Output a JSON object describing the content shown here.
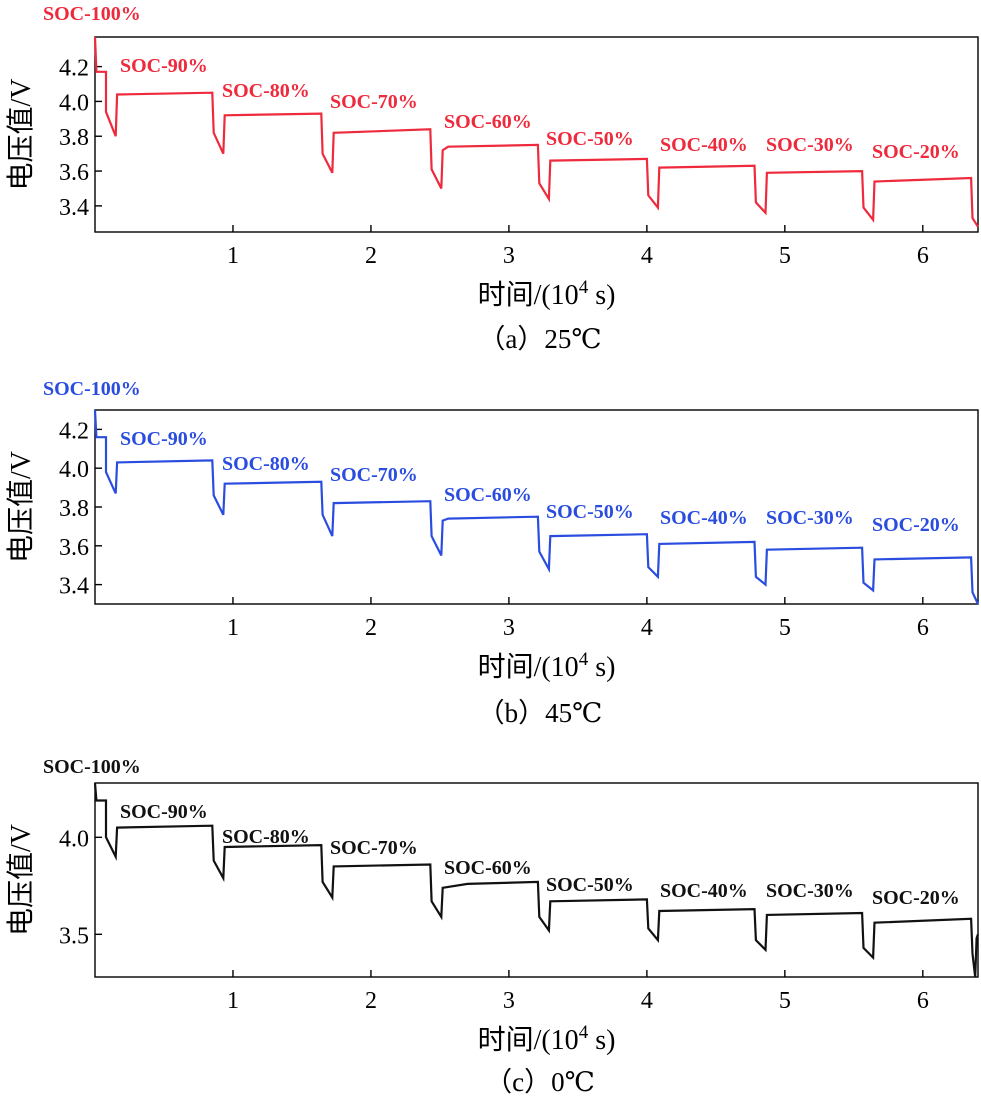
{
  "figure_caption_prefix": "",
  "chart_data": [
    {
      "type": "line",
      "panel": "a",
      "caption": "（a）25℃",
      "xlabel_main": "时间/(10",
      "xlabel_sup": "4",
      "xlabel_tail": " s)",
      "ylabel": "电压值/V",
      "xlim": [
        0,
        6.4
      ],
      "ylim": [
        3.25,
        4.37
      ],
      "xticks": [
        1,
        2,
        3,
        4,
        5,
        6
      ],
      "yticks": [
        3.4,
        3.6,
        3.8,
        4.0,
        4.2
      ],
      "ytick_labels": [
        "3.4",
        "3.6",
        "3.8",
        "4.0",
        "4.2"
      ],
      "color": "#ee2a3c",
      "series": [
        {
          "name": "25℃",
          "points": [
            [
              0,
              4.37
            ],
            [
              0.01,
              4.17
            ],
            [
              0.08,
              4.17
            ],
            [
              0.08,
              3.94
            ],
            [
              0.15,
              3.8
            ],
            [
              0.16,
              4.04
            ],
            [
              0.85,
              4.05
            ],
            [
              0.86,
              3.82
            ],
            [
              0.93,
              3.7
            ],
            [
              0.94,
              3.92
            ],
            [
              1.64,
              3.93
            ],
            [
              1.65,
              3.7
            ],
            [
              1.72,
              3.59
            ],
            [
              1.73,
              3.82
            ],
            [
              2.43,
              3.84
            ],
            [
              2.44,
              3.61
            ],
            [
              2.51,
              3.5
            ],
            [
              2.52,
              3.72
            ],
            [
              2.56,
              3.74
            ],
            [
              3.21,
              3.75
            ],
            [
              3.22,
              3.53
            ],
            [
              3.29,
              3.44
            ],
            [
              3.3,
              3.66
            ],
            [
              4.0,
              3.67
            ],
            [
              4.01,
              3.46
            ],
            [
              4.08,
              3.39
            ],
            [
              4.09,
              3.62
            ],
            [
              4.78,
              3.63
            ],
            [
              4.79,
              3.42
            ],
            [
              4.86,
              3.36
            ],
            [
              4.87,
              3.59
            ],
            [
              5.56,
              3.6
            ],
            [
              5.57,
              3.39
            ],
            [
              5.64,
              3.32
            ],
            [
              5.65,
              3.54
            ],
            [
              6.35,
              3.56
            ],
            [
              6.36,
              3.33
            ],
            [
              6.4,
              3.28
            ]
          ]
        }
      ],
      "annotations": [
        "SOC-100%",
        "SOC-90%",
        "SOC-80%",
        "SOC-70%",
        "SOC-60%",
        "SOC-50%",
        "SOC-40%",
        "SOC-30%",
        "SOC-20%"
      ]
    },
    {
      "type": "line",
      "panel": "b",
      "caption": "（b）45℃",
      "xlabel_main": "时间/(10",
      "xlabel_sup": "4",
      "xlabel_tail": " s)",
      "ylabel": "电压值/V",
      "xlim": [
        0,
        6.4
      ],
      "ylim": [
        3.3,
        4.3
      ],
      "xticks": [
        1,
        2,
        3,
        4,
        5,
        6
      ],
      "yticks": [
        3.4,
        3.6,
        3.8,
        4.0,
        4.2
      ],
      "ytick_labels": [
        "3.4",
        "3.6",
        "3.8",
        "4.0",
        "4.2"
      ],
      "color": "#2a4de0",
      "series": [
        {
          "name": "45℃",
          "points": [
            [
              0,
              4.3
            ],
            [
              0.01,
              4.16
            ],
            [
              0.08,
              4.16
            ],
            [
              0.08,
              3.98
            ],
            [
              0.15,
              3.87
            ],
            [
              0.16,
              4.03
            ],
            [
              0.85,
              4.04
            ],
            [
              0.86,
              3.86
            ],
            [
              0.93,
              3.76
            ],
            [
              0.94,
              3.92
            ],
            [
              1.64,
              3.93
            ],
            [
              1.65,
              3.76
            ],
            [
              1.72,
              3.65
            ],
            [
              1.73,
              3.82
            ],
            [
              2.43,
              3.83
            ],
            [
              2.44,
              3.65
            ],
            [
              2.51,
              3.55
            ],
            [
              2.52,
              3.73
            ],
            [
              2.56,
              3.74
            ],
            [
              3.21,
              3.75
            ],
            [
              3.22,
              3.57
            ],
            [
              3.29,
              3.48
            ],
            [
              3.3,
              3.65
            ],
            [
              4.0,
              3.66
            ],
            [
              4.01,
              3.49
            ],
            [
              4.08,
              3.44
            ],
            [
              4.09,
              3.61
            ],
            [
              4.78,
              3.62
            ],
            [
              4.79,
              3.44
            ],
            [
              4.86,
              3.4
            ],
            [
              4.87,
              3.58
            ],
            [
              5.56,
              3.59
            ],
            [
              5.57,
              3.41
            ],
            [
              5.64,
              3.37
            ],
            [
              5.65,
              3.53
            ],
            [
              6.35,
              3.54
            ],
            [
              6.36,
              3.36
            ],
            [
              6.4,
              3.3
            ]
          ]
        }
      ],
      "annotations": [
        "SOC-100%",
        "SOC-90%",
        "SOC-80%",
        "SOC-70%",
        "SOC-60%",
        "SOC-50%",
        "SOC-40%",
        "SOC-30%",
        "SOC-20%"
      ]
    },
    {
      "type": "line",
      "panel": "c",
      "caption": "（c）0℃",
      "xlabel_main": "时间/(10",
      "xlabel_sup": "4",
      "xlabel_tail": " s)",
      "ylabel": "电压值/V",
      "xlim": [
        0,
        6.4
      ],
      "ylim": [
        3.28,
        4.28
      ],
      "xticks": [
        1,
        2,
        3,
        4,
        5,
        6
      ],
      "yticks": [
        3.5,
        4.0
      ],
      "ytick_labels": [
        "3.5",
        "4.0"
      ],
      "color": "#111111",
      "series": [
        {
          "name": "0℃",
          "points": [
            [
              0,
              4.28
            ],
            [
              0.01,
              4.19
            ],
            [
              0.08,
              4.19
            ],
            [
              0.08,
              4.0
            ],
            [
              0.15,
              3.9
            ],
            [
              0.16,
              4.05
            ],
            [
              0.85,
              4.06
            ],
            [
              0.86,
              3.88
            ],
            [
              0.93,
              3.79
            ],
            [
              0.94,
              3.95
            ],
            [
              1.64,
              3.96
            ],
            [
              1.65,
              3.77
            ],
            [
              1.72,
              3.69
            ],
            [
              1.73,
              3.85
            ],
            [
              2.43,
              3.86
            ],
            [
              2.44,
              3.67
            ],
            [
              2.51,
              3.59
            ],
            [
              2.52,
              3.74
            ],
            [
              2.7,
              3.76
            ],
            [
              3.21,
              3.77
            ],
            [
              3.22,
              3.59
            ],
            [
              3.29,
              3.52
            ],
            [
              3.3,
              3.67
            ],
            [
              4.0,
              3.68
            ],
            [
              4.01,
              3.53
            ],
            [
              4.08,
              3.47
            ],
            [
              4.09,
              3.62
            ],
            [
              4.78,
              3.63
            ],
            [
              4.79,
              3.47
            ],
            [
              4.86,
              3.42
            ],
            [
              4.87,
              3.6
            ],
            [
              5.56,
              3.61
            ],
            [
              5.57,
              3.43
            ],
            [
              5.64,
              3.38
            ],
            [
              5.65,
              3.56
            ],
            [
              6.35,
              3.58
            ],
            [
              6.36,
              3.4
            ],
            [
              6.38,
              3.28
            ],
            [
              6.39,
              3.48
            ],
            [
              6.4,
              3.5
            ]
          ]
        }
      ],
      "annotations": [
        "SOC-100%",
        "SOC-90%",
        "SOC-80%",
        "SOC-70%",
        "SOC-60%",
        "SOC-50%",
        "SOC-40%",
        "SOC-30%",
        "SOC-20%"
      ]
    }
  ]
}
